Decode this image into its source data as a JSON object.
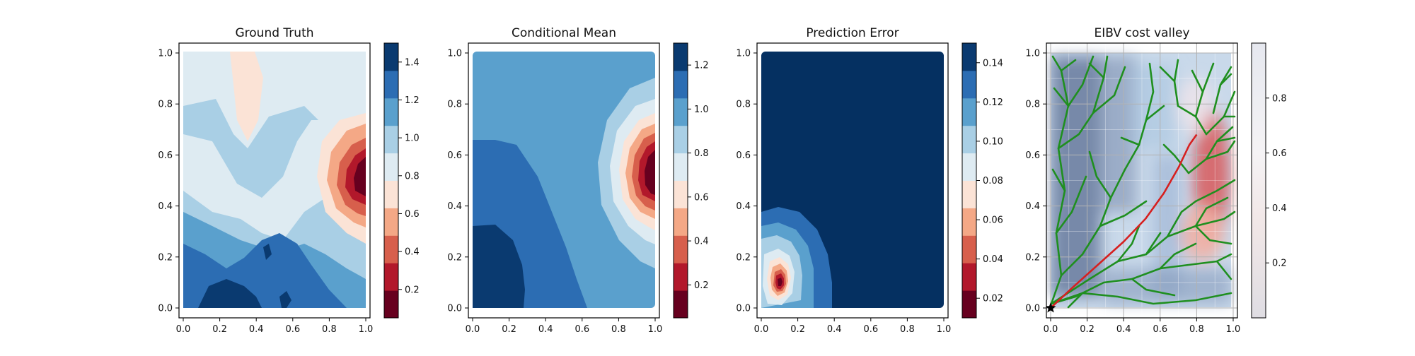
{
  "chart_data": [
    {
      "type": "heatmap",
      "title": "Ground Truth",
      "xlim": [
        0.0,
        1.0
      ],
      "ylim": [
        0.0,
        1.0
      ],
      "xticks": [
        "0.0",
        "0.2",
        "0.4",
        "0.6",
        "0.8",
        "1.0"
      ],
      "yticks": [
        "0.0",
        "0.2",
        "0.4",
        "0.6",
        "0.8",
        "1.0"
      ],
      "colormap": "RdBu",
      "colorbar": {
        "range": [
          0.05,
          1.5
        ],
        "ticks": [
          "0.2",
          "0.4",
          "0.6",
          "0.8",
          "1.0",
          "1.2",
          "1.4"
        ],
        "tick_values": [
          0.2,
          0.4,
          0.6,
          0.8,
          1.0,
          1.2,
          1.4
        ]
      },
      "grid": false
    },
    {
      "type": "heatmap",
      "title": "Conditional Mean",
      "xlim": [
        0.0,
        1.0
      ],
      "ylim": [
        0.0,
        1.0
      ],
      "xticks": [
        "0.0",
        "0.2",
        "0.4",
        "0.6",
        "0.8",
        "1.0"
      ],
      "yticks": [
        "0.0",
        "0.2",
        "0.4",
        "0.6",
        "0.8",
        "1.0"
      ],
      "colormap": "RdBu",
      "colorbar": {
        "range": [
          0.05,
          1.3
        ],
        "ticks": [
          "0.2",
          "0.4",
          "0.6",
          "0.8",
          "1.0",
          "1.2"
        ],
        "tick_values": [
          0.2,
          0.4,
          0.6,
          0.8,
          1.0,
          1.2
        ]
      },
      "grid": false
    },
    {
      "type": "heatmap",
      "title": "Prediction Error",
      "xlim": [
        0.0,
        1.0
      ],
      "ylim": [
        0.0,
        1.0
      ],
      "xticks": [
        "0.0",
        "0.2",
        "0.4",
        "0.6",
        "0.8",
        "1.0"
      ],
      "yticks": [
        "0.0",
        "0.2",
        "0.4",
        "0.6",
        "0.8",
        "1.0"
      ],
      "colormap": "RdBu",
      "colorbar": {
        "range": [
          0.01,
          0.15
        ],
        "ticks": [
          "0.02",
          "0.04",
          "0.06",
          "0.08",
          "0.10",
          "0.12",
          "0.14"
        ],
        "tick_values": [
          0.02,
          0.04,
          0.06,
          0.08,
          0.1,
          0.12,
          0.14
        ]
      },
      "grid": false
    },
    {
      "type": "heatmap",
      "title": "EIBV cost valley",
      "xlim": [
        0.0,
        1.0
      ],
      "ylim": [
        0.0,
        1.0
      ],
      "xticks": [
        "0.0",
        "0.2",
        "0.4",
        "0.6",
        "0.8",
        "1.0"
      ],
      "yticks": [
        "0.0",
        "0.2",
        "0.4",
        "0.6",
        "0.8",
        "1.0"
      ],
      "colormap": "RdBu",
      "colorbar": {
        "range": [
          0.0,
          1.0
        ],
        "ticks": [
          "0.2",
          "0.4",
          "0.6",
          "0.8"
        ],
        "tick_values": [
          0.2,
          0.4,
          0.6,
          0.8
        ]
      },
      "grid": true,
      "start_marker": {
        "x": 0.0,
        "y": 0.0
      },
      "path": [
        [
          0.0,
          0.0
        ],
        [
          0.12,
          0.08
        ],
        [
          0.26,
          0.17
        ],
        [
          0.4,
          0.26
        ],
        [
          0.52,
          0.35
        ],
        [
          0.62,
          0.45
        ],
        [
          0.7,
          0.55
        ],
        [
          0.76,
          0.64
        ],
        [
          0.8,
          0.68
        ]
      ]
    }
  ]
}
